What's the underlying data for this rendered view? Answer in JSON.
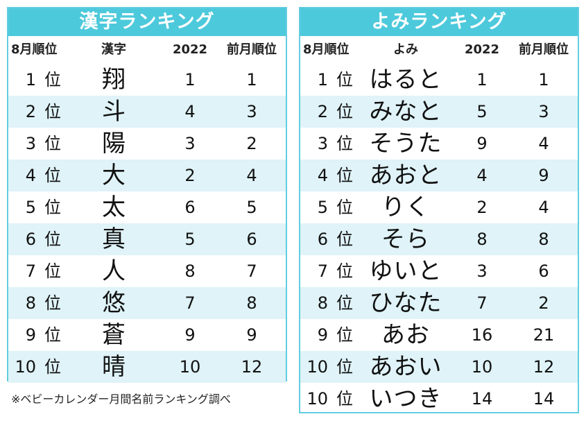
{
  "kanji": {
    "title": "漢字ランキング",
    "headers": [
      "8月順位",
      "漢字",
      "2022",
      "前月順位"
    ],
    "rows": [
      {
        "rank": "1",
        "unit": "位",
        "name": "翔",
        "y2022": "1",
        "prev": "1"
      },
      {
        "rank": "2",
        "unit": "位",
        "name": "斗",
        "y2022": "4",
        "prev": "3"
      },
      {
        "rank": "3",
        "unit": "位",
        "name": "陽",
        "y2022": "3",
        "prev": "2"
      },
      {
        "rank": "4",
        "unit": "位",
        "name": "大",
        "y2022": "2",
        "prev": "4"
      },
      {
        "rank": "5",
        "unit": "位",
        "name": "太",
        "y2022": "6",
        "prev": "5"
      },
      {
        "rank": "6",
        "unit": "位",
        "name": "真",
        "y2022": "5",
        "prev": "6"
      },
      {
        "rank": "7",
        "unit": "位",
        "name": "人",
        "y2022": "8",
        "prev": "7"
      },
      {
        "rank": "8",
        "unit": "位",
        "name": "悠",
        "y2022": "7",
        "prev": "8"
      },
      {
        "rank": "9",
        "unit": "位",
        "name": "蒼",
        "y2022": "9",
        "prev": "9"
      },
      {
        "rank": "10",
        "unit": "位",
        "name": "晴",
        "y2022": "10",
        "prev": "12"
      }
    ]
  },
  "yomi": {
    "title": "よみランキング",
    "headers": [
      "8月順位",
      "よみ",
      "2022",
      "前月順位"
    ],
    "rows": [
      {
        "rank": "1",
        "unit": "位",
        "name": "はると",
        "y2022": "1",
        "prev": "1"
      },
      {
        "rank": "2",
        "unit": "位",
        "name": "みなと",
        "y2022": "5",
        "prev": "3"
      },
      {
        "rank": "3",
        "unit": "位",
        "name": "そうた",
        "y2022": "9",
        "prev": "4"
      },
      {
        "rank": "4",
        "unit": "位",
        "name": "あおと",
        "y2022": "4",
        "prev": "9"
      },
      {
        "rank": "5",
        "unit": "位",
        "name": "りく",
        "y2022": "2",
        "prev": "4"
      },
      {
        "rank": "6",
        "unit": "位",
        "name": "そら",
        "y2022": "8",
        "prev": "8"
      },
      {
        "rank": "7",
        "unit": "位",
        "name": "ゆいと",
        "y2022": "3",
        "prev": "6"
      },
      {
        "rank": "8",
        "unit": "位",
        "name": "ひなた",
        "y2022": "7",
        "prev": "2"
      },
      {
        "rank": "9",
        "unit": "位",
        "name": "あお",
        "y2022": "16",
        "prev": "21"
      },
      {
        "rank": "10",
        "unit": "位",
        "name": "あおい",
        "y2022": "10",
        "prev": "12"
      },
      {
        "rank": "10",
        "unit": "位",
        "name": "いつき",
        "y2022": "14",
        "prev": "14"
      }
    ]
  },
  "footnote": "※ベビーカレンダー月間名前ランキング調べ",
  "colors": {
    "accent": "#4dc9dc",
    "border": "#62cde0",
    "stripe": "#dff3f8"
  }
}
